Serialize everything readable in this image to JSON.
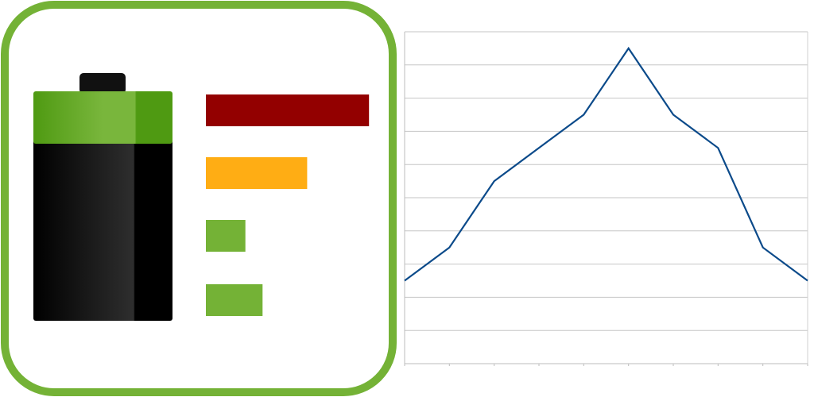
{
  "icon": {
    "name": "battery-usage-icon",
    "frame_color": "#74b236",
    "battery": {
      "cap_color": "#111111",
      "charge_color": "#5aa51c",
      "body_colors": [
        "#000000",
        "#2e2e2e",
        "#000000"
      ]
    },
    "usage_bars": [
      {
        "name": "usage-bar-high",
        "level": 0.95,
        "color": "#930000"
      },
      {
        "name": "usage-bar-medium",
        "level": 0.59,
        "color": "#ffad14"
      },
      {
        "name": "usage-bar-low",
        "level": 0.23,
        "color": "#74b236"
      },
      {
        "name": "usage-bar-lowest",
        "level": 0.33,
        "color": "#74b236"
      }
    ]
  },
  "chart_data": {
    "type": "line",
    "x": [
      0,
      1,
      2,
      3,
      4,
      5,
      6,
      7,
      8,
      9
    ],
    "series": [
      {
        "values": [
          2,
          3,
          5,
          6,
          7,
          9,
          7,
          6,
          3,
          2
        ],
        "color": "#0b4a8a"
      }
    ],
    "ylim": [
      -0.5,
      9.5
    ],
    "grid": true,
    "gridline_values": [
      -0.5,
      0.5,
      1.5,
      2.5,
      3.5,
      4.5,
      5.5,
      6.5,
      7.5,
      8.5,
      9.5
    ],
    "title": "",
    "xlabel": "",
    "ylabel": ""
  }
}
